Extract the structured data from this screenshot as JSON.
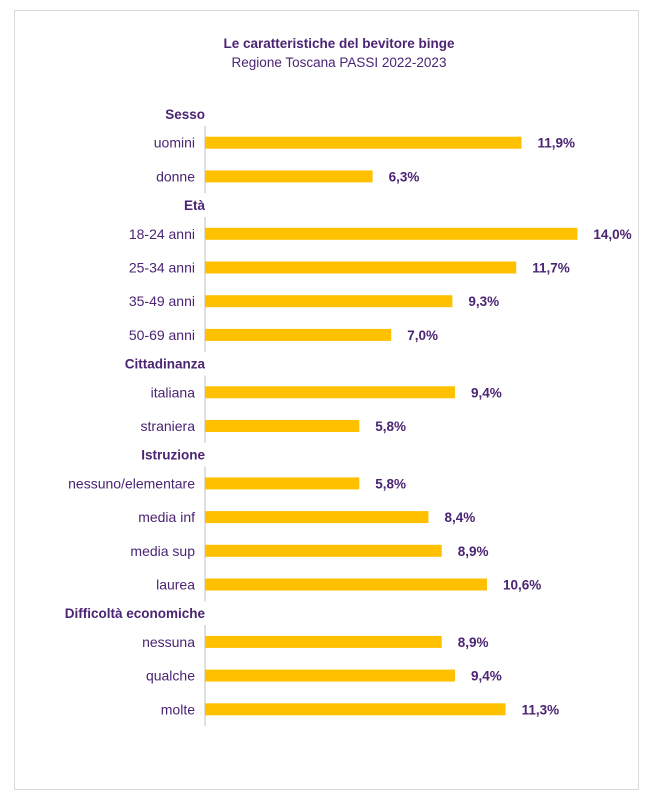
{
  "chart_data": {
    "type": "bar",
    "orientation": "horizontal",
    "title": "Le caratteristiche del bevitore binge",
    "subtitle": "Regione Toscana PASSI 2022-2023",
    "bar_color": "#ffc000",
    "text_color": "#4b2473",
    "axis_color": "#bfbfbf",
    "value_suffix": "%",
    "decimal_separator": ",",
    "groups": [
      {
        "name": "Sesso",
        "categories": [
          "uomini",
          "donne"
        ],
        "values": [
          11.9,
          6.3
        ]
      },
      {
        "name": "Età",
        "categories": [
          "18-24 anni",
          "25-34 anni",
          "35-49 anni",
          "50-69 anni"
        ],
        "values": [
          14.0,
          11.7,
          9.3,
          7.0
        ]
      },
      {
        "name": "Cittadinanza",
        "categories": [
          "italiana",
          "straniera"
        ],
        "values": [
          9.4,
          5.8
        ]
      },
      {
        "name": "Istruzione",
        "categories": [
          "nessuno/elementare",
          "media inf",
          "media sup",
          "laurea"
        ],
        "values": [
          5.8,
          8.4,
          8.9,
          10.6
        ]
      },
      {
        "name": "Difficoltà economiche",
        "categories": [
          "nessuna",
          "qualche",
          "molte"
        ],
        "values": [
          8.9,
          9.4,
          11.3
        ]
      }
    ]
  }
}
